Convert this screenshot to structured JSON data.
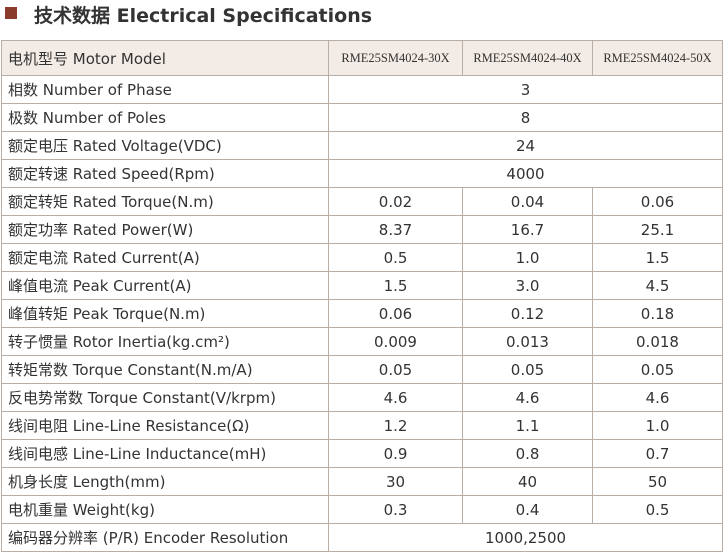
{
  "header": {
    "title": "技术数据 Electrical Specifications"
  },
  "table": {
    "header": {
      "label": "电机型号 Motor Model",
      "models": [
        "RME25SM4024-30X",
        "RME25SM4024-40X",
        "RME25SM4024-50X"
      ]
    },
    "rows": [
      {
        "label": "相数 Number of Phase",
        "values": [
          "3"
        ]
      },
      {
        "label": "极数 Number of Poles",
        "values": [
          "8"
        ]
      },
      {
        "label": "额定电压 Rated Voltage(VDC)",
        "values": [
          "24"
        ]
      },
      {
        "label": "额定转速 Rated Speed(Rpm)",
        "values": [
          "4000"
        ]
      },
      {
        "label": "额定转矩 Rated Torque(N.m)",
        "values": [
          "0.02",
          "0.04",
          "0.06"
        ]
      },
      {
        "label": "额定功率 Rated Power(W)",
        "values": [
          "8.37",
          "16.7",
          "25.1"
        ]
      },
      {
        "label": "额定电流 Rated Current(A)",
        "values": [
          "0.5",
          "1.0",
          "1.5"
        ]
      },
      {
        "label": "峰值电流 Peak Current(A)",
        "values": [
          "1.5",
          "3.0",
          "4.5"
        ]
      },
      {
        "label": "峰值转矩 Peak Torque(N.m)",
        "values": [
          "0.06",
          "0.12",
          "0.18"
        ]
      },
      {
        "label": "转子惯量 Rotor Inertia(kg.cm²)",
        "values": [
          "0.009",
          "0.013",
          "0.018"
        ]
      },
      {
        "label": "转矩常数 Torque Constant(N.m/A)",
        "values": [
          "0.05",
          "0.05",
          "0.05"
        ]
      },
      {
        "label": "反电势常数 Torque Constant(V/krpm)",
        "values": [
          "4.6",
          "4.6",
          "4.6"
        ]
      },
      {
        "label": "线间电阻 Line-Line Resistance(Ω)",
        "values": [
          "1.2",
          "1.1",
          "1.0"
        ]
      },
      {
        "label": "线间电感 Line-Line Inductance(mH)",
        "values": [
          "0.9",
          "0.8",
          "0.7"
        ]
      },
      {
        "label": "机身长度 Length(mm)",
        "values": [
          "30",
          "40",
          "50"
        ]
      },
      {
        "label": "电机重量 Weight(kg)",
        "values": [
          "0.3",
          "0.4",
          "0.5"
        ]
      },
      {
        "label": "编码器分辨率 (P/R) Encoder Resolution",
        "values": [
          "1000,2500"
        ]
      }
    ]
  }
}
